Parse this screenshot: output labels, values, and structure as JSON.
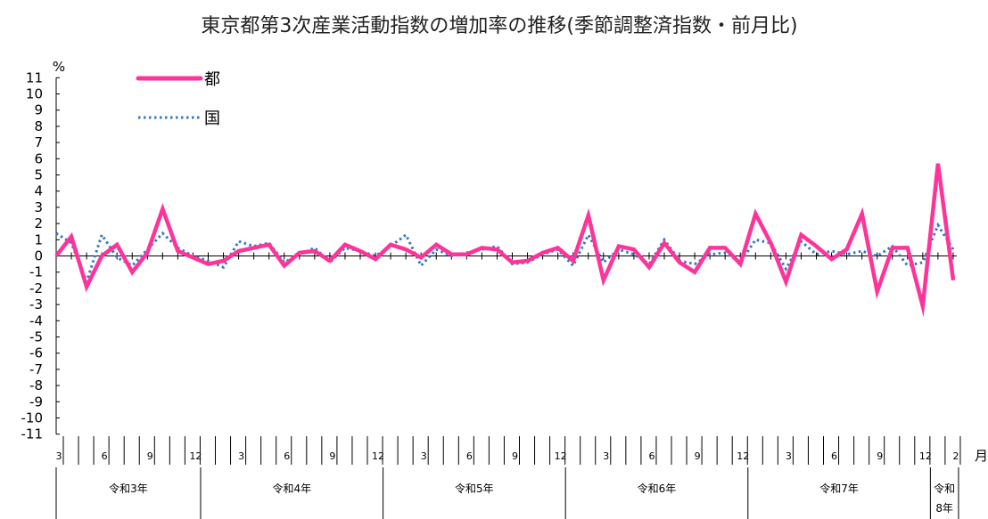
{
  "chart_data": {
    "type": "line",
    "title": "東京都第3次産業活動指数の増加率の推移(季節調整済指数・前月比)",
    "y_unit": "%",
    "x_unit": "月",
    "ylim": [
      -11,
      11
    ],
    "y_ticks": [
      11,
      10,
      9,
      8,
      7,
      6,
      5,
      4,
      3,
      2,
      1,
      0,
      -1,
      -2,
      -3,
      -4,
      -5,
      -6,
      -7,
      -8,
      -9,
      -10,
      -11
    ],
    "colors": {
      "tokyo": "#ff3399",
      "national": "#2f78c4"
    },
    "legend": [
      {
        "label": "都",
        "style": "solid"
      },
      {
        "label": "国",
        "style": "dotted"
      }
    ],
    "month_labels": [
      {
        "index": 0,
        "label": "3"
      },
      {
        "index": 3,
        "label": "6"
      },
      {
        "index": 6,
        "label": "9"
      },
      {
        "index": 9,
        "label": "12"
      },
      {
        "index": 12,
        "label": "3"
      },
      {
        "index": 15,
        "label": "6"
      },
      {
        "index": 18,
        "label": "9"
      },
      {
        "index": 21,
        "label": "12"
      },
      {
        "index": 24,
        "label": "3"
      },
      {
        "index": 27,
        "label": "6"
      },
      {
        "index": 30,
        "label": "9"
      },
      {
        "index": 33,
        "label": "12"
      },
      {
        "index": 36,
        "label": "3"
      },
      {
        "index": 39,
        "label": "6"
      },
      {
        "index": 42,
        "label": "9"
      },
      {
        "index": 45,
        "label": "12"
      },
      {
        "index": 48,
        "label": "3"
      },
      {
        "index": 51,
        "label": "6"
      },
      {
        "index": 54,
        "label": "9"
      },
      {
        "index": 57,
        "label": "12"
      },
      {
        "index": 59,
        "label": "2"
      }
    ],
    "years": [
      {
        "label": "令和3年",
        "start": 0,
        "end": 9
      },
      {
        "label": "令和4年",
        "start": 10,
        "end": 21
      },
      {
        "label": "令和5年",
        "start": 22,
        "end": 33
      },
      {
        "label": "令和6年",
        "start": 34,
        "end": 45
      },
      {
        "label": "令和7年",
        "start": 46,
        "end": 57
      },
      {
        "label": "令和8年",
        "start": 58,
        "end": 59
      }
    ],
    "series": [
      {
        "name": "都",
        "values": [
          0.0,
          1.2,
          -1.9,
          0.0,
          0.7,
          -1.0,
          0.2,
          2.9,
          0.3,
          -0.1,
          -0.5,
          -0.3,
          0.3,
          0.5,
          0.7,
          -0.6,
          0.2,
          0.3,
          -0.3,
          0.7,
          0.3,
          -0.2,
          0.7,
          0.4,
          -0.1,
          0.7,
          0.1,
          0.1,
          0.5,
          0.4,
          -0.4,
          -0.3,
          0.2,
          0.5,
          -0.3,
          2.5,
          -1.5,
          0.6,
          0.4,
          -0.7,
          0.8,
          -0.4,
          -1.0,
          0.5,
          0.5,
          -0.5,
          2.6,
          0.8,
          -1.6,
          1.3,
          0.6,
          -0.2,
          0.4,
          2.6,
          -2.2,
          0.5,
          0.5,
          -3.1,
          5.7,
          -1.5
        ]
      },
      {
        "name": "国",
        "values": [
          1.4,
          0.8,
          -1.6,
          1.3,
          -0.1,
          -0.6,
          0.4,
          1.4,
          0.5,
          0.0,
          -0.3,
          -0.7,
          0.9,
          0.6,
          0.8,
          -0.4,
          0.1,
          0.5,
          -0.4,
          0.5,
          0.3,
          0.0,
          0.6,
          1.3,
          -0.6,
          0.4,
          0.0,
          0.2,
          0.4,
          0.6,
          -0.5,
          -0.4,
          0.1,
          0.4,
          -0.6,
          1.3,
          -0.4,
          0.4,
          0.1,
          -0.5,
          1.0,
          -0.3,
          -0.5,
          0.1,
          0.2,
          -0.4,
          1.0,
          0.8,
          -0.8,
          0.9,
          0.1,
          0.3,
          0.1,
          0.3,
          0.0,
          0.6,
          -0.6,
          -0.4,
          1.9,
          0.4
        ]
      }
    ]
  }
}
